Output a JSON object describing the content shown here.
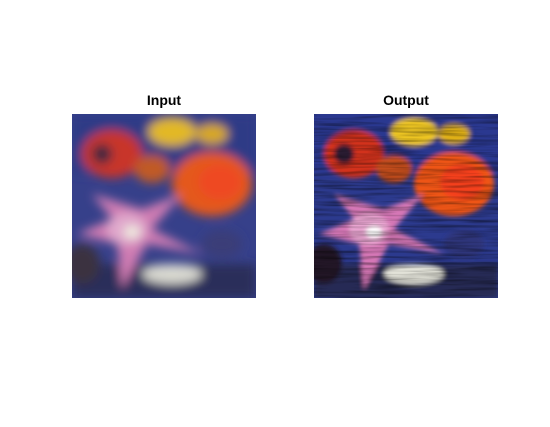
{
  "panels": {
    "input": {
      "title": "Input"
    },
    "output": {
      "title": "Output"
    }
  },
  "colors": {
    "background_blue": "#2f3a8a",
    "flower_pink": "#d07ab0",
    "flower_red": "#d8342a",
    "flower_orange": "#e8621e",
    "flower_yellow": "#e8c020"
  }
}
